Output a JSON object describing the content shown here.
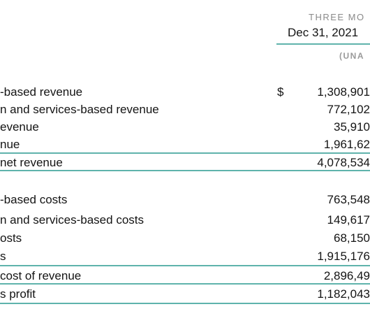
{
  "header": {
    "period_label": "THREE MO",
    "date": "Dec 31, 2021",
    "audit_label": "(UNA"
  },
  "currency_symbol": "$",
  "revenue_rows": [
    {
      "label": "-based revenue",
      "value": "1,308,901"
    },
    {
      "label": "n and services-based revenue",
      "value": "772,102"
    },
    {
      "label": "evenue",
      "value": "35,910"
    },
    {
      "label": "nue",
      "value": "1,961,62"
    },
    {
      "label": "net revenue",
      "value": "4,078,534"
    }
  ],
  "cost_rows": [
    {
      "label": "-based costs",
      "value": "763,548"
    },
    {
      "label": "n and services-based costs",
      "value": "149,617"
    },
    {
      "label": "osts",
      "value": "68,150"
    },
    {
      "label": "s",
      "value": "1,915,176"
    },
    {
      "label": "cost of revenue",
      "value": "2,896,49"
    },
    {
      "label": "s profit",
      "value": "1,182,043"
    }
  ],
  "colors": {
    "accent_rule": "#5fb3ac",
    "header_gray": "#8a8a8a",
    "text": "#141414"
  }
}
